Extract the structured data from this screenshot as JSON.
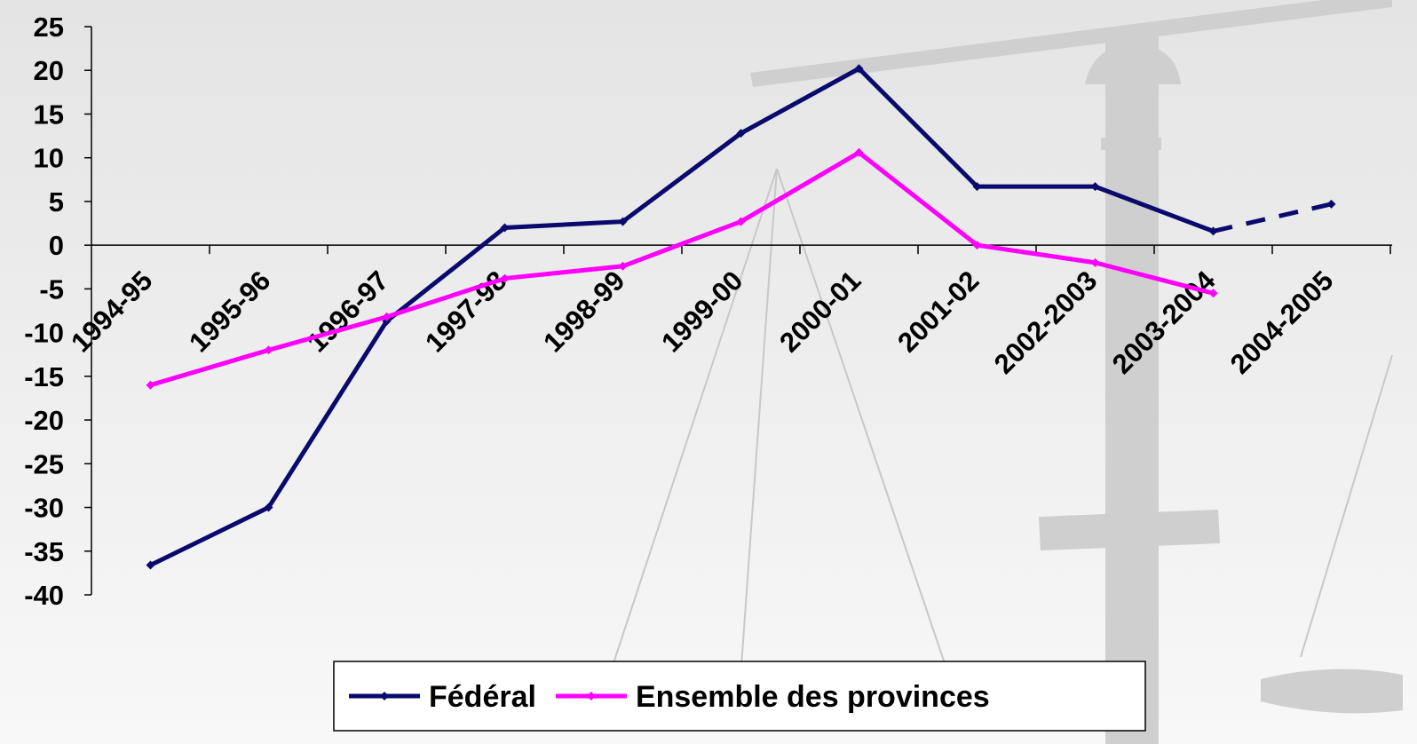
{
  "chart_data": {
    "type": "line",
    "categories": [
      "1994-95",
      "1995-96",
      "1996-97",
      "1997-98",
      "1998-99",
      "1999-00",
      "2000-01",
      "2001-02",
      "2002-2003",
      "2003-2004",
      "2004-2005"
    ],
    "series": [
      {
        "name": "Fédéral",
        "color": "#0a0a6e",
        "values": [
          -36.6,
          -30.0,
          -8.7,
          2.0,
          2.7,
          12.8,
          20.2,
          6.7,
          6.7,
          1.6,
          4.7
        ],
        "dashed_segments": [
          9
        ]
      },
      {
        "name": "Ensemble des provinces",
        "color": "#ff00ff",
        "values": [
          -16.0,
          -12.0,
          -8.2,
          -3.8,
          -2.4,
          2.7,
          10.6,
          0.0,
          -2.0,
          -5.5,
          null
        ],
        "dashed_segments": []
      }
    ],
    "ylim": [
      -40,
      25
    ],
    "yticks": [
      -40,
      -35,
      -30,
      -25,
      -20,
      -15,
      -10,
      -5,
      0,
      5,
      10,
      15,
      20,
      25
    ],
    "legend": "bottom"
  }
}
